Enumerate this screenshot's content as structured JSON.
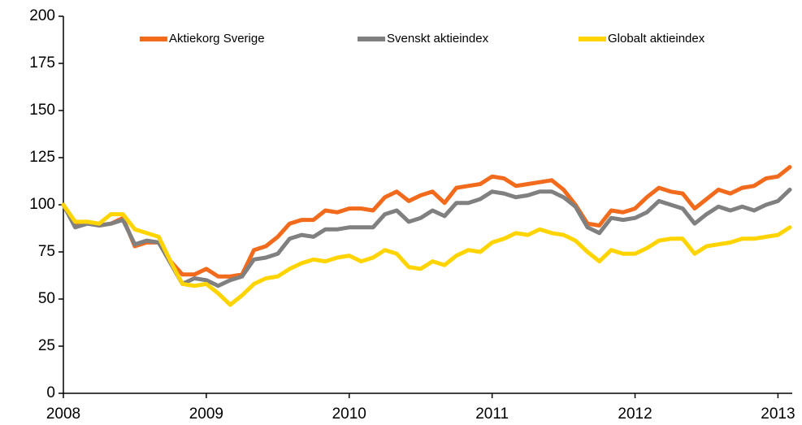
{
  "chart_data": {
    "type": "line",
    "x": [
      2008,
      2008.083,
      2008.167,
      2008.25,
      2008.333,
      2008.417,
      2008.5,
      2008.583,
      2008.667,
      2008.75,
      2008.833,
      2008.917,
      2009,
      2009.083,
      2009.167,
      2009.25,
      2009.333,
      2009.417,
      2009.5,
      2009.583,
      2009.667,
      2009.75,
      2009.833,
      2009.917,
      2010,
      2010.083,
      2010.167,
      2010.25,
      2010.333,
      2010.417,
      2010.5,
      2010.583,
      2010.667,
      2010.75,
      2010.833,
      2010.917,
      2011,
      2011.083,
      2011.167,
      2011.25,
      2011.333,
      2011.417,
      2011.5,
      2011.583,
      2011.667,
      2011.75,
      2011.833,
      2011.917,
      2012,
      2012.083,
      2012.167,
      2012.25,
      2012.333,
      2012.417,
      2012.5,
      2012.583,
      2012.667,
      2012.75,
      2012.833,
      2012.917,
      2013,
      2013.083
    ],
    "series": [
      {
        "name": "Aktiekorg Sverige",
        "color": "#f26a1b",
        "values": [
          100,
          90,
          91,
          89,
          90,
          93,
          78,
          80,
          80,
          70,
          63,
          63,
          66,
          62,
          62,
          63,
          76,
          78,
          83,
          90,
          92,
          92,
          97,
          96,
          98,
          98,
          97,
          104,
          107,
          102,
          105,
          107,
          101,
          109,
          110,
          111,
          115,
          114,
          110,
          111,
          112,
          113,
          108,
          100,
          90,
          89,
          97,
          96,
          98,
          104,
          109,
          107,
          106,
          98,
          103,
          108,
          106,
          109,
          110,
          114,
          115,
          120
        ]
      },
      {
        "name": "Svenskt aktieindex",
        "color": "#808080",
        "values": [
          100,
          88,
          90,
          89,
          90,
          92,
          79,
          81,
          80,
          69,
          58,
          61,
          60,
          57,
          60,
          62,
          71,
          72,
          74,
          82,
          84,
          83,
          87,
          87,
          88,
          88,
          88,
          95,
          97,
          91,
          93,
          97,
          94,
          101,
          101,
          103,
          107,
          106,
          104,
          105,
          107,
          107,
          104,
          99,
          88,
          85,
          93,
          92,
          93,
          96,
          102,
          100,
          98,
          90,
          95,
          99,
          97,
          99,
          97,
          100,
          102,
          108
        ]
      },
      {
        "name": "Globalt aktieindex",
        "color": "#ffd400",
        "values": [
          100,
          91,
          91,
          90,
          95,
          95,
          87,
          85,
          83,
          70,
          58,
          57,
          58,
          53,
          47,
          52,
          58,
          61,
          62,
          66,
          69,
          71,
          70,
          72,
          73,
          70,
          72,
          76,
          74,
          67,
          66,
          70,
          68,
          73,
          76,
          75,
          80,
          82,
          85,
          84,
          87,
          85,
          84,
          81,
          75,
          70,
          76,
          74,
          74,
          77,
          81,
          82,
          82,
          74,
          78,
          79,
          80,
          82,
          82,
          83,
          84,
          88
        ]
      }
    ],
    "xlim": [
      2008,
      2013.1
    ],
    "xticks": [
      2008,
      2009,
      2010,
      2011,
      2012,
      2013
    ],
    "ylim": [
      0,
      200
    ],
    "yticks": [
      0,
      25,
      50,
      75,
      100,
      125,
      150,
      175,
      200
    ],
    "grid": false,
    "legend": "top"
  }
}
